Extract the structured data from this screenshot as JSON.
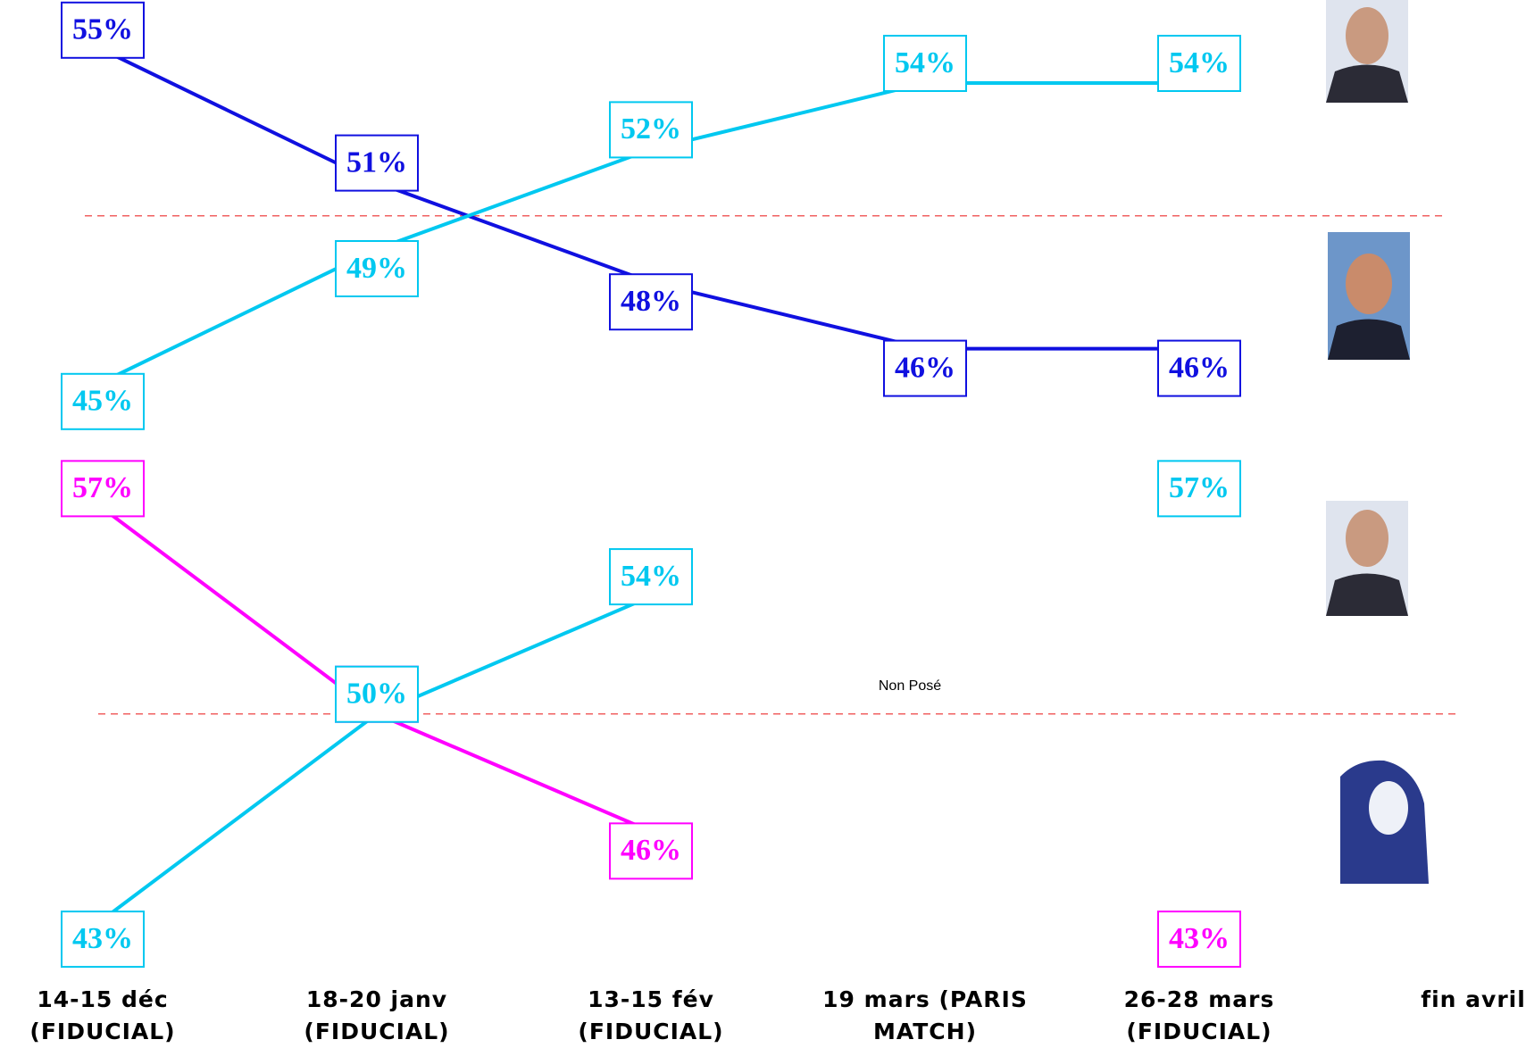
{
  "chart_data": [
    {
      "type": "line",
      "categories": [
        "14-15 déc (FIDUCIAL)",
        "18-20 janv (FIDUCIAL)",
        "13-15 fév (FIDUCIAL)",
        "19 mars (PARIS MATCH)",
        "26-28 mars (FIDUCIAL)",
        "fin avril"
      ],
      "ylim": [
        44,
        56.5
      ],
      "reference": 50,
      "series": [
        {
          "color": "#1010e0",
          "values": [
            55,
            51,
            48,
            46,
            46,
            null
          ],
          "value_labels": [
            "55%",
            "51%",
            "48%",
            "46%",
            "46%",
            null
          ]
        },
        {
          "color": "#00c8f0",
          "values": [
            45,
            49,
            52,
            54,
            54,
            null
          ],
          "value_labels": [
            "45%",
            "49%",
            "52%",
            "54%",
            "54%",
            null
          ]
        }
      ]
    },
    {
      "type": "line",
      "ylim": [
        42,
        58.5
      ],
      "reference": 50,
      "annotation": "Non Posé",
      "series": [
        {
          "color": "#ff00ff",
          "values": [
            57,
            50,
            46,
            null,
            43,
            null
          ],
          "value_labels": [
            "57%",
            "50%",
            "46%",
            null,
            "43%",
            null
          ]
        },
        {
          "color": "#00c8f0",
          "values": [
            43,
            50,
            54,
            null,
            57,
            null
          ],
          "value_labels": [
            "43%",
            "50%",
            "54%",
            null,
            "57%",
            null
          ]
        }
      ]
    }
  ]
}
